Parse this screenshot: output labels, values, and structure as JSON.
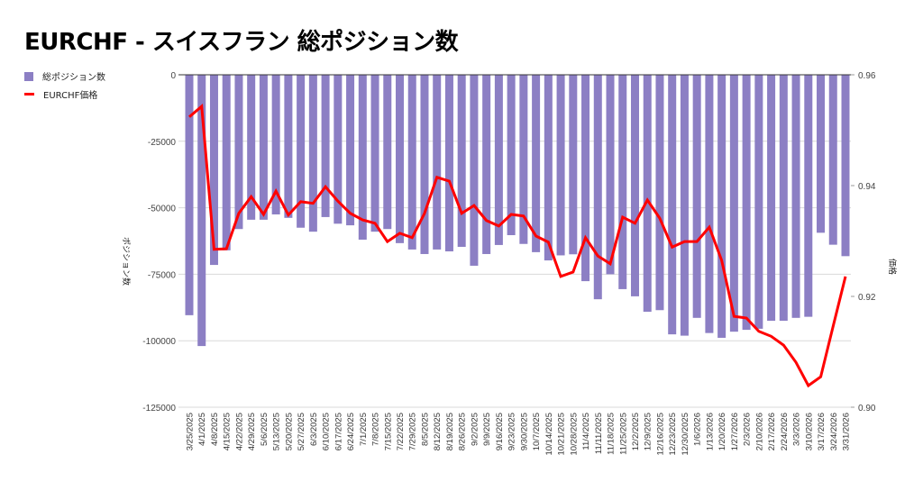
{
  "chart_data": {
    "type": "bar+line",
    "title": "EURCHF - スイスフラン 総ポジション数",
    "ylabel_left": "ポジション数",
    "ylabel_right": "価格",
    "ylim_left": [
      -125000,
      0
    ],
    "ylim_right": [
      0.9,
      0.96
    ],
    "yticks_left": [
      "0",
      "-25000",
      "-50000",
      "-75000",
      "-100000",
      "-125000"
    ],
    "yticks_left_values": [
      0,
      -25000,
      -50000,
      -75000,
      -100000,
      -125000
    ],
    "yticks_right": [
      "0.96",
      "0.94",
      "0.92",
      "0.90"
    ],
    "yticks_right_values": [
      0.96,
      0.94,
      0.92,
      0.9
    ],
    "grid": true,
    "legend_position": "top-left",
    "categories": [
      "3/25/2025",
      "4/1/2025",
      "4/8/2025",
      "4/15/2025",
      "4/22/2025",
      "4/29/2025",
      "5/6/2025",
      "5/13/2025",
      "5/20/2025",
      "5/27/2025",
      "6/3/2025",
      "6/10/2025",
      "6/17/2025",
      "6/24/2025",
      "7/1/2025",
      "7/8/2025",
      "7/15/2025",
      "7/22/2025",
      "7/29/2025",
      "8/5/2025",
      "8/12/2025",
      "8/19/2025",
      "8/26/2025",
      "9/2/2025",
      "9/9/2025",
      "9/16/2025",
      "9/23/2025",
      "9/30/2025",
      "10/7/2025",
      "10/14/2025",
      "10/21/2025",
      "10/28/2025",
      "11/4/2025",
      "11/11/2025",
      "11/18/2025",
      "11/25/2025",
      "12/2/2025",
      "12/9/2025",
      "12/16/2025",
      "12/23/2025",
      "12/30/2025",
      "1/6/2026",
      "1/13/2026",
      "1/20/2026",
      "1/27/2026",
      "2/3/2026",
      "2/10/2026",
      "2/17/2026",
      "2/24/2026",
      "3/3/2026",
      "3/10/2026",
      "3/17/2026",
      "3/24/2026",
      "3/31/2026"
    ],
    "series": [
      {
        "name": "総ポジション数",
        "type": "bar",
        "axis": "left",
        "color": "#8c7fc4",
        "values": [
          -90400,
          -102000,
          -71500,
          -66000,
          -58000,
          -54500,
          -54500,
          -52500,
          -53800,
          -57500,
          -59000,
          -53500,
          -56000,
          -56600,
          -62000,
          -59000,
          -58000,
          -63300,
          -65700,
          -67400,
          -65700,
          -66400,
          -64700,
          -71800,
          -67400,
          -64000,
          -60300,
          -63600,
          -66700,
          -69800,
          -67900,
          -67500,
          -77600,
          -84400,
          -75000,
          -80600,
          -83300,
          -89100,
          -88500,
          -97600,
          -98100,
          -91400,
          -97100,
          -98900,
          -96600,
          -95900,
          -95500,
          -92500,
          -92500,
          -91400,
          -91000,
          -59400,
          -63900,
          -68200
        ]
      },
      {
        "name": "EURCHF価格",
        "type": "line",
        "axis": "right",
        "color": "#ff0000",
        "values": [
          0.9524,
          0.9543,
          0.9285,
          0.9286,
          0.935,
          0.938,
          0.9348,
          0.939,
          0.9347,
          0.9371,
          0.9368,
          0.9398,
          0.9372,
          0.935,
          0.9338,
          0.9332,
          0.9299,
          0.9314,
          0.9306,
          0.935,
          0.9415,
          0.9408,
          0.935,
          0.9364,
          0.9337,
          0.9327,
          0.9348,
          0.9345,
          0.9309,
          0.9298,
          0.9236,
          0.9244,
          0.9306,
          0.9273,
          0.9259,
          0.9343,
          0.9332,
          0.9374,
          0.9341,
          0.9289,
          0.9299,
          0.9299,
          0.9325,
          0.9265,
          0.9164,
          0.9161,
          0.9137,
          0.9128,
          0.9112,
          0.9081,
          0.9039,
          0.9055,
          0.9146,
          0.9236
        ]
      }
    ]
  }
}
